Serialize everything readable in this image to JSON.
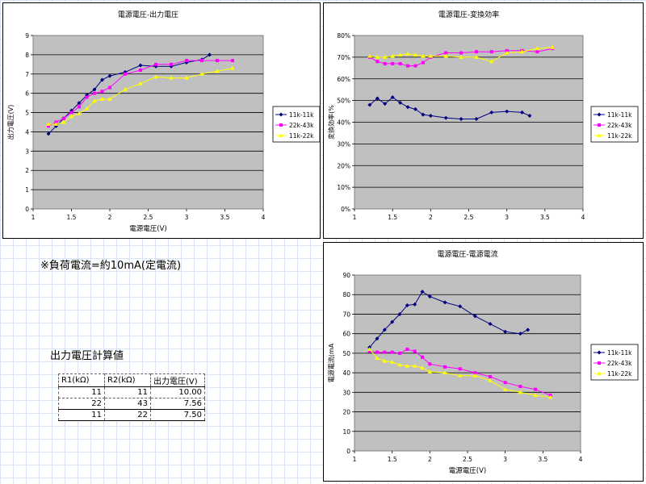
{
  "note": "※負荷電流=約10mA(定電流)",
  "table": {
    "title": "出力電圧計算値",
    "headers": [
      "R1(kΩ)",
      "R2(kΩ)",
      "出力電圧(V)"
    ],
    "rows": [
      [
        "11",
        "11",
        "10.00"
      ],
      [
        "22",
        "43",
        "7.56"
      ],
      [
        "11",
        "22",
        "7.50"
      ]
    ]
  },
  "colors": {
    "s1": "#000080",
    "s2": "#ff00ff",
    "s3": "#ffff00",
    "plot_bg": "#c0c0c0"
  },
  "chart_data": [
    {
      "type": "line",
      "title": "電源電圧-出力電圧",
      "xlabel": "電源電圧(V)",
      "ylabel": "出力電圧(V)",
      "xlim": [
        1,
        4
      ],
      "ylim": [
        0,
        9
      ],
      "xticks": [
        "1",
        "1.5",
        "2",
        "2.5",
        "3",
        "3.5",
        "4"
      ],
      "yticks": [
        "0",
        "1",
        "2",
        "3",
        "4",
        "5",
        "6",
        "7",
        "8",
        "9"
      ],
      "legend": "right",
      "grid": true,
      "series": [
        {
          "name": "11k-11k",
          "x": [
            1.2,
            1.3,
            1.4,
            1.5,
            1.6,
            1.7,
            1.8,
            1.9,
            2.0,
            2.2,
            2.4,
            2.6,
            2.8,
            3.0,
            3.2,
            3.3
          ],
          "y": [
            3.9,
            4.3,
            4.7,
            5.1,
            5.5,
            5.9,
            6.2,
            6.7,
            6.9,
            7.1,
            7.45,
            7.4,
            7.4,
            7.6,
            7.75,
            8.0
          ]
        },
        {
          "name": "22k-43k",
          "x": [
            1.2,
            1.3,
            1.4,
            1.5,
            1.6,
            1.7,
            1.8,
            1.9,
            2.0,
            2.2,
            2.4,
            2.6,
            2.8,
            3.0,
            3.2,
            3.4,
            3.6
          ],
          "y": [
            4.3,
            4.5,
            4.7,
            5.0,
            5.3,
            5.8,
            6.0,
            6.1,
            6.3,
            7.0,
            7.2,
            7.5,
            7.5,
            7.7,
            7.7,
            7.7,
            7.7
          ]
        },
        {
          "name": "11k-22k",
          "x": [
            1.2,
            1.3,
            1.4,
            1.5,
            1.6,
            1.7,
            1.8,
            1.9,
            2.0,
            2.2,
            2.4,
            2.6,
            2.8,
            3.0,
            3.2,
            3.4,
            3.6
          ],
          "y": [
            4.4,
            4.4,
            4.5,
            4.8,
            4.95,
            5.2,
            5.6,
            5.7,
            5.7,
            6.2,
            6.5,
            6.85,
            6.8,
            6.8,
            7.0,
            7.15,
            7.3
          ]
        }
      ]
    },
    {
      "type": "line",
      "title": "電源電圧-変換効率",
      "xlabel": "",
      "ylabel": "変換効率(%",
      "xlim": [
        1,
        4
      ],
      "ylim": [
        0,
        80
      ],
      "xticks": [
        "1",
        "1.5",
        "2",
        "2.5",
        "3",
        "3.5",
        "4"
      ],
      "yticks": [
        "0%",
        "10%",
        "20%",
        "30%",
        "40%",
        "50%",
        "60%",
        "70%",
        "80%"
      ],
      "legend": "right",
      "grid": true,
      "series": [
        {
          "name": "11k-11k",
          "x": [
            1.2,
            1.3,
            1.4,
            1.5,
            1.6,
            1.7,
            1.8,
            1.9,
            2.0,
            2.2,
            2.4,
            2.6,
            2.8,
            3.0,
            3.2,
            3.3
          ],
          "y": [
            48,
            51,
            48.5,
            51.5,
            49,
            47,
            46,
            43.5,
            43,
            42,
            41.5,
            41.5,
            44.5,
            45,
            44.5,
            43
          ]
        },
        {
          "name": "22k-43k",
          "x": [
            1.2,
            1.3,
            1.4,
            1.5,
            1.6,
            1.7,
            1.8,
            1.9,
            2.0,
            2.2,
            2.4,
            2.6,
            2.8,
            3.0,
            3.2,
            3.4,
            3.6
          ],
          "y": [
            70,
            68,
            67,
            67,
            67,
            66,
            66,
            67.5,
            70,
            72,
            72,
            72.5,
            72.5,
            73,
            73,
            72.5,
            74
          ]
        },
        {
          "name": "11k-22k",
          "x": [
            1.2,
            1.3,
            1.4,
            1.5,
            1.6,
            1.7,
            1.8,
            1.9,
            2.0,
            2.2,
            2.4,
            2.6,
            2.8,
            3.0,
            3.2,
            3.4,
            3.6
          ],
          "y": [
            70.5,
            70,
            70,
            70.5,
            71,
            71.5,
            71,
            70.5,
            70.5,
            70.5,
            70,
            70,
            68,
            72,
            72.5,
            74,
            74.5
          ]
        }
      ]
    },
    {
      "type": "line",
      "title": "電源電圧-電源電流",
      "xlabel": "電源電圧(V)",
      "ylabel": "電源電流(mA",
      "xlim": [
        1,
        4
      ],
      "ylim": [
        0,
        90
      ],
      "xticks": [
        "1",
        "1.5",
        "2",
        "2.5",
        "3",
        "3.5",
        "4"
      ],
      "yticks": [
        "0",
        "10",
        "20",
        "30",
        "40",
        "50",
        "60",
        "70",
        "80",
        "90"
      ],
      "legend": "right",
      "grid": true,
      "series": [
        {
          "name": "11k-11k",
          "x": [
            1.2,
            1.3,
            1.4,
            1.5,
            1.6,
            1.7,
            1.8,
            1.9,
            2.0,
            2.2,
            2.4,
            2.6,
            2.8,
            3.0,
            3.2,
            3.3
          ],
          "y": [
            53,
            57.5,
            62,
            66,
            70,
            74.5,
            75,
            81.5,
            79,
            76,
            74,
            69,
            65,
            61,
            60,
            62
          ]
        },
        {
          "name": "22k-43k",
          "x": [
            1.2,
            1.3,
            1.4,
            1.5,
            1.6,
            1.7,
            1.8,
            1.9,
            2.0,
            2.2,
            2.4,
            2.6,
            2.8,
            3.0,
            3.2,
            3.4,
            3.6
          ],
          "y": [
            51,
            50.5,
            50.5,
            50.5,
            50,
            52,
            51,
            48,
            44.5,
            43,
            42,
            40,
            38,
            35,
            33,
            31.5,
            28.5
          ]
        },
        {
          "name": "11k-22k",
          "x": [
            1.2,
            1.3,
            1.4,
            1.5,
            1.6,
            1.7,
            1.8,
            1.9,
            2.0,
            2.2,
            2.4,
            2.6,
            2.8,
            3.0,
            3.2,
            3.4,
            3.6
          ],
          "y": [
            52,
            47.5,
            46,
            45.5,
            44,
            43.5,
            43.5,
            42.5,
            40.5,
            40,
            38.5,
            38.5,
            36,
            31.5,
            30,
            28.5,
            27.5
          ]
        }
      ]
    }
  ]
}
